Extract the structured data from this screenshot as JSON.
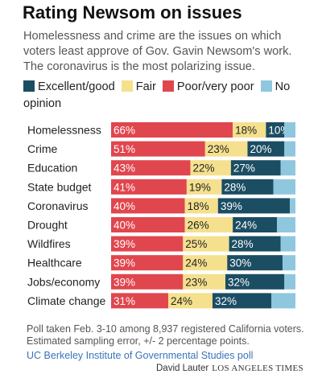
{
  "title": "Rating Newsom on issues",
  "subtitle": "Homelessness and crime are the issues on which voters least approve of Gov. Gavin Newsom's work. The coronavirus is the most polarizing issue.",
  "note": "Poll taken Feb. 3-10 among 8,937 registered California voters. Estimated sampling error, +/- 2 percentage points.",
  "source": "UC Berkeley Institute of Governmental Studies poll",
  "credit": {
    "author": "David Lauter",
    "publication": "LOS ANGELES TIMES"
  },
  "chart_data": {
    "type": "bar",
    "orientation": "horizontal",
    "stacked": true,
    "normalized_percent": true,
    "categories": [
      "Homelessness",
      "Crime",
      "Education",
      "State budget",
      "Coronavirus",
      "Drought",
      "Wildfires",
      "Healthcare",
      "Jobs/economy",
      "Climate change"
    ],
    "series": [
      {
        "name": "Poor/very poor",
        "color": "#e0464e",
        "label_color": "#ffffff",
        "values": [
          66,
          51,
          43,
          41,
          40,
          40,
          39,
          39,
          39,
          31
        ]
      },
      {
        "name": "Fair",
        "color": "#f5e08e",
        "label_color": "#222222",
        "values": [
          18,
          23,
          22,
          19,
          18,
          26,
          25,
          24,
          23,
          24
        ]
      },
      {
        "name": "Excellent/good",
        "color": "#1b4d63",
        "label_color": "#ffffff",
        "values": [
          10,
          20,
          27,
          28,
          39,
          24,
          28,
          30,
          32,
          32
        ]
      },
      {
        "name": "No opinion",
        "color": "#8fc7df",
        "label_color": "#222222",
        "values": [
          6,
          6,
          8,
          12,
          3,
          10,
          8,
          7,
          6,
          13
        ]
      }
    ],
    "legend_order": [
      "Excellent/good",
      "Fair",
      "Poor/very poor",
      "No opinion"
    ],
    "xlim": [
      0,
      100
    ],
    "value_suffix": "%",
    "legend_position": "top",
    "grid": false
  }
}
